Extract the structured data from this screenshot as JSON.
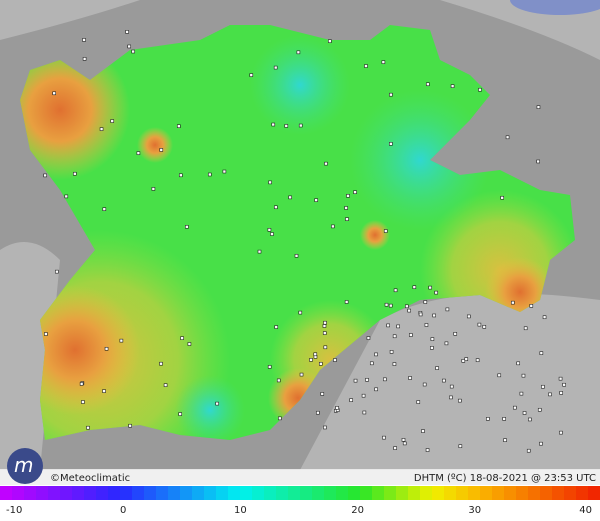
{
  "watermark": "©Meteoclimatic",
  "caption": "DHTM (ºC) 18-08-2021 @ 23:53 UTC",
  "scale": {
    "ticks": [
      -10,
      0,
      10,
      20,
      30,
      40
    ]
  }
}
